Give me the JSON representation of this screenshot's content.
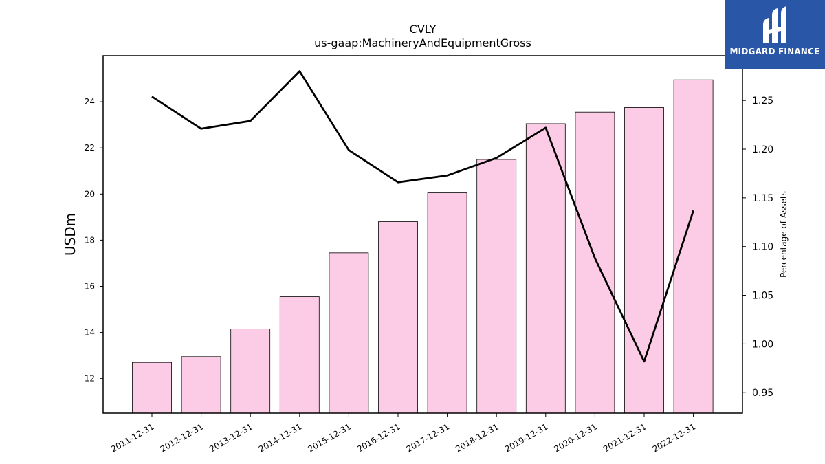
{
  "brand": {
    "name": "MIDGARD FINANCE",
    "bg_color": "#2a56a8"
  },
  "chart_data": {
    "type": "bar",
    "title": "CVLY",
    "subtitle": "us-gaap:MachineryAndEquipmentGross",
    "ylabel": "USDm",
    "y2label": "Percentage of Assets",
    "categories": [
      "2011-12-31",
      "2012-12-31",
      "2013-12-31",
      "2014-12-31",
      "2015-12-31",
      "2016-12-31",
      "2017-12-31",
      "2018-12-31",
      "2019-12-31",
      "2020-12-31",
      "2021-12-31",
      "2022-12-31"
    ],
    "series": [
      {
        "type": "bar",
        "axis": "left",
        "values": [
          12.7,
          12.95,
          14.15,
          15.55,
          17.45,
          18.8,
          20.05,
          21.5,
          23.05,
          23.55,
          23.75,
          24.95
        ],
        "color": "#fccce6"
      },
      {
        "type": "line",
        "axis": "right",
        "values": [
          1.254,
          1.221,
          1.229,
          1.28,
          1.199,
          1.166,
          1.173,
          1.191,
          1.222,
          1.088,
          0.982,
          1.137
        ],
        "color": "#000000"
      }
    ],
    "ylim": [
      10.5,
      26.0
    ],
    "y2lim": [
      0.929,
      1.296
    ],
    "yticks": [
      12,
      14,
      16,
      18,
      20,
      22,
      24
    ],
    "y2ticks": [
      "0.95",
      "1.00",
      "1.05",
      "1.10",
      "1.15",
      "1.20",
      "1.25"
    ],
    "grid": false,
    "legend": "none"
  }
}
